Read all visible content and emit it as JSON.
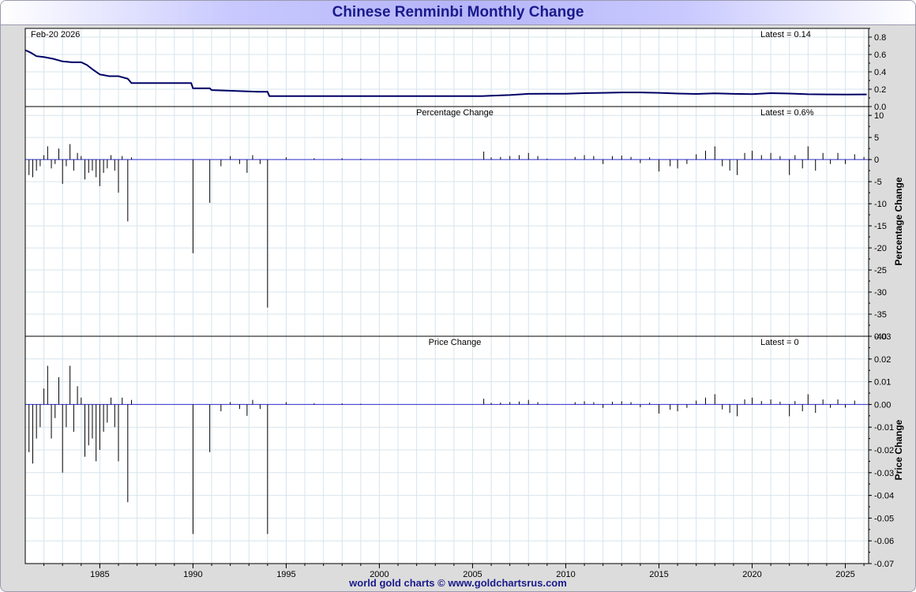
{
  "title": "Chinese Renminbi Monthly Change",
  "footer": "world gold charts © www.goldchartsrus.com",
  "colors": {
    "line": "#000066",
    "bar": "#000000",
    "zero_line": "#3333cc",
    "grid": "#d6e4ee",
    "title": "#1a1a8c"
  },
  "chart_data": [
    {
      "type": "line",
      "date_label": "Feb-20  2026",
      "latest_label": "Latest = 0.14",
      "ylim": [
        0,
        0.9
      ],
      "yticks": [
        "0.8",
        "0.6",
        "0.4",
        "0.2",
        "0.0"
      ],
      "x": [
        1981.0,
        1981.3,
        1981.6,
        1982.0,
        1982.5,
        1983.0,
        1983.5,
        1984.0,
        1984.3,
        1984.6,
        1985.0,
        1985.5,
        1986.0,
        1986.5,
        1986.7,
        1989.9,
        1990.0,
        1990.9,
        1991.0,
        1993.5,
        1994.0,
        1994.1,
        1995.0,
        2000.0,
        2005.5,
        2006.0,
        2007.0,
        2008.0,
        2009.0,
        2010.0,
        2011.0,
        2012.0,
        2013.0,
        2014.0,
        2015.0,
        2016.0,
        2017.0,
        2018.0,
        2019.0,
        2020.0,
        2021.0,
        2022.0,
        2023.0,
        2024.0,
        2025.0,
        2026.15
      ],
      "y": [
        0.65,
        0.62,
        0.58,
        0.57,
        0.55,
        0.52,
        0.51,
        0.51,
        0.48,
        0.43,
        0.37,
        0.35,
        0.35,
        0.32,
        0.27,
        0.27,
        0.21,
        0.21,
        0.19,
        0.17,
        0.17,
        0.12,
        0.12,
        0.12,
        0.12,
        0.125,
        0.133,
        0.146,
        0.147,
        0.148,
        0.155,
        0.158,
        0.163,
        0.163,
        0.158,
        0.15,
        0.145,
        0.152,
        0.146,
        0.144,
        0.155,
        0.15,
        0.142,
        0.14,
        0.138,
        0.14
      ]
    },
    {
      "type": "bar",
      "title": "Percentage Change",
      "latest_label": "Latest = 0.6%",
      "ylabel": "Percentage Change",
      "ylim": [
        -40,
        12
      ],
      "yticks": [
        "10",
        "5",
        "0",
        "-5",
        "-10",
        "-15",
        "-20",
        "-25",
        "-30",
        "-35",
        "-40"
      ],
      "x": [
        1981.2,
        1981.4,
        1981.6,
        1981.8,
        1982.0,
        1982.2,
        1982.4,
        1982.6,
        1982.8,
        1983.0,
        1983.2,
        1983.4,
        1983.6,
        1983.8,
        1984.0,
        1984.2,
        1984.4,
        1984.6,
        1984.8,
        1985.0,
        1985.2,
        1985.4,
        1985.6,
        1985.8,
        1986.0,
        1986.2,
        1986.5,
        1986.7,
        1990.0,
        1990.9,
        1991.5,
        1992.0,
        1992.5,
        1992.9,
        1993.2,
        1993.6,
        1994.0,
        1995.0,
        1996.5,
        1998.0,
        1999.0,
        2005.6,
        2006.0,
        2006.5,
        2007.0,
        2007.5,
        2008.0,
        2008.5,
        2009.0,
        2010.5,
        2011.0,
        2011.5,
        2012.0,
        2012.5,
        2013.0,
        2013.5,
        2014.0,
        2014.5,
        2015.0,
        2015.6,
        2016.0,
        2016.5,
        2017.0,
        2017.5,
        2018.0,
        2018.4,
        2018.8,
        2019.2,
        2019.6,
        2020.0,
        2020.5,
        2021.0,
        2021.5,
        2022.0,
        2022.3,
        2022.7,
        2023.0,
        2023.4,
        2023.8,
        2024.2,
        2024.6,
        2025.0,
        2025.5,
        2026.0
      ],
      "values": [
        -3.5,
        -4.0,
        -2.5,
        -1.5,
        1.0,
        3.0,
        -2.0,
        -1.0,
        2.5,
        -5.5,
        -1.5,
        3.5,
        -2.5,
        1.5,
        0.8,
        -4.5,
        -3.0,
        -2.5,
        -4.0,
        -6.0,
        -3.0,
        -2.0,
        1.0,
        -2.5,
        -7.5,
        0.8,
        -14.0,
        0.5,
        -21.2,
        -9.8,
        -1.5,
        0.8,
        -1.0,
        -3.0,
        1.0,
        -1.0,
        -33.5,
        0.5,
        0.3,
        0.3,
        0.2,
        1.8,
        0.5,
        0.6,
        0.8,
        1.0,
        1.5,
        0.8,
        0.2,
        0.6,
        1.0,
        0.8,
        -1.0,
        0.8,
        0.9,
        0.6,
        -0.8,
        0.5,
        -2.7,
        -1.5,
        -2.0,
        -1.0,
        1.2,
        2.0,
        3.0,
        -1.5,
        -2.5,
        -3.5,
        1.5,
        2.0,
        1.0,
        1.5,
        0.8,
        -3.5,
        1.0,
        -2.0,
        3.0,
        -2.5,
        1.5,
        -1.0,
        1.5,
        -1.0,
        1.2,
        0.6
      ]
    },
    {
      "type": "bar",
      "title": "Price Change",
      "latest_label": "Latest = 0",
      "ylabel": "Price Change",
      "ylim": [
        -0.07,
        0.03
      ],
      "yticks": [
        "0.03",
        "0.02",
        "0.01",
        "0.00",
        "-0.01",
        "-0.02",
        "-0.03",
        "-0.04",
        "-0.05",
        "-0.06",
        "-0.07"
      ],
      "xticks": [
        "1985",
        "1990",
        "1995",
        "2000",
        "2005",
        "2010",
        "2015",
        "2020",
        "2025"
      ],
      "x": [
        1981.2,
        1981.4,
        1981.6,
        1981.8,
        1982.0,
        1982.2,
        1982.4,
        1982.6,
        1982.8,
        1983.0,
        1983.2,
        1983.4,
        1983.6,
        1983.8,
        1984.0,
        1984.2,
        1984.4,
        1984.6,
        1984.8,
        1985.0,
        1985.2,
        1985.4,
        1985.6,
        1985.8,
        1986.0,
        1986.2,
        1986.5,
        1986.7,
        1990.0,
        1990.9,
        1991.5,
        1992.0,
        1992.5,
        1992.9,
        1993.2,
        1993.6,
        1994.0,
        1995.0,
        1996.5,
        1998.0,
        1999.0,
        2005.6,
        2006.0,
        2006.5,
        2007.0,
        2007.5,
        2008.0,
        2008.5,
        2009.0,
        2010.5,
        2011.0,
        2011.5,
        2012.0,
        2012.5,
        2013.0,
        2013.5,
        2014.0,
        2014.5,
        2015.0,
        2015.6,
        2016.0,
        2016.5,
        2017.0,
        2017.5,
        2018.0,
        2018.4,
        2018.8,
        2019.2,
        2019.6,
        2020.0,
        2020.5,
        2021.0,
        2021.5,
        2022.0,
        2022.3,
        2022.7,
        2023.0,
        2023.4,
        2023.8,
        2024.2,
        2024.6,
        2025.0,
        2025.5,
        2026.0
      ],
      "values": [
        -0.021,
        -0.026,
        -0.015,
        -0.01,
        0.007,
        0.017,
        -0.015,
        -0.006,
        0.012,
        -0.03,
        -0.01,
        0.017,
        -0.012,
        0.008,
        0.003,
        -0.023,
        -0.018,
        -0.015,
        -0.025,
        -0.02,
        -0.012,
        -0.008,
        0.003,
        -0.01,
        -0.025,
        0.003,
        -0.043,
        0.002,
        -0.057,
        -0.021,
        -0.003,
        0.001,
        -0.002,
        -0.005,
        0.002,
        -0.002,
        -0.057,
        0.001,
        0.0005,
        0.0005,
        0.0003,
        0.0025,
        0.0007,
        0.0008,
        0.001,
        0.0013,
        0.002,
        0.001,
        0.0003,
        0.001,
        0.0014,
        0.001,
        -0.0015,
        0.0012,
        0.0014,
        0.001,
        -0.0012,
        0.0008,
        -0.004,
        -0.0023,
        -0.003,
        -0.0015,
        0.0017,
        0.003,
        0.0045,
        -0.0022,
        -0.0037,
        -0.0052,
        0.0022,
        0.003,
        0.0015,
        0.0022,
        0.0012,
        -0.0052,
        0.0015,
        -0.003,
        0.0045,
        -0.0037,
        0.0022,
        -0.0015,
        0.0022,
        -0.0014,
        0.0017,
        0.0
      ]
    }
  ]
}
